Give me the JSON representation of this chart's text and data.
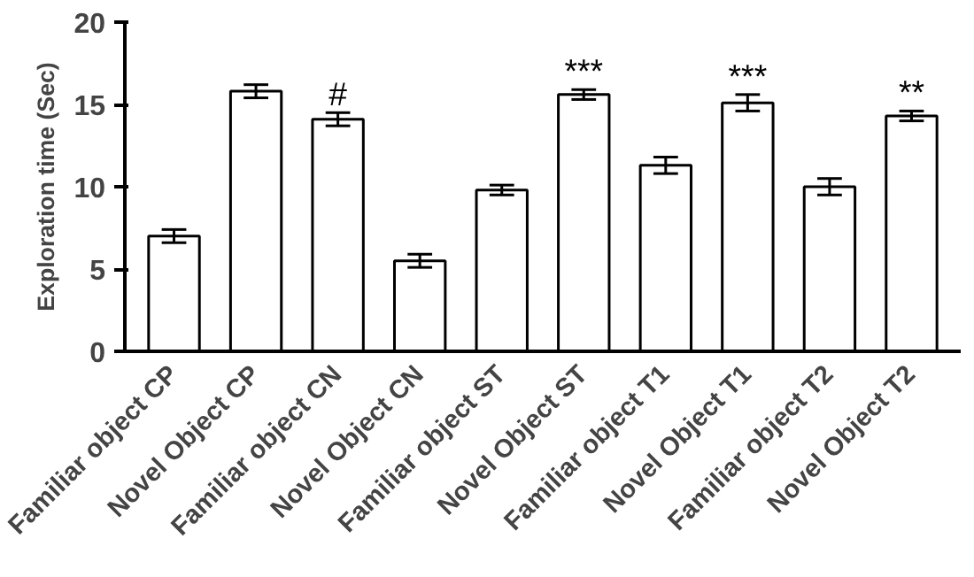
{
  "chart_data": {
    "type": "bar",
    "ylabel": "Exploration time (Sec)",
    "categories": [
      "Familiar object CP",
      "Novel Object CP",
      "Familiar object CN",
      "Novel Object CN",
      "Familiar object ST",
      "Novel Object ST",
      "Familiar object T1",
      "Novel Object T1",
      "Familiar object T2",
      "Novel Object T2"
    ],
    "values": [
      7.0,
      15.8,
      14.1,
      5.5,
      9.8,
      15.6,
      11.3,
      15.1,
      10.0,
      14.3
    ],
    "errors": [
      0.4,
      0.4,
      0.4,
      0.4,
      0.3,
      0.3,
      0.5,
      0.5,
      0.5,
      0.3
    ],
    "color": "#ffffff",
    "ylim": [
      0,
      20
    ],
    "yticks": [
      0,
      5,
      10,
      15,
      20
    ],
    "grid": false,
    "annotations": [
      {
        "text": "#",
        "x": "Familiar object CN",
        "y": 14.5
      },
      {
        "text": "***",
        "x": "Novel Object ST",
        "y": 15.9
      },
      {
        "text": "***",
        "x": "Novel Object T1",
        "y": 15.6
      },
      {
        "text": "**",
        "x": "Novel Object T2",
        "y": 14.6
      }
    ]
  }
}
